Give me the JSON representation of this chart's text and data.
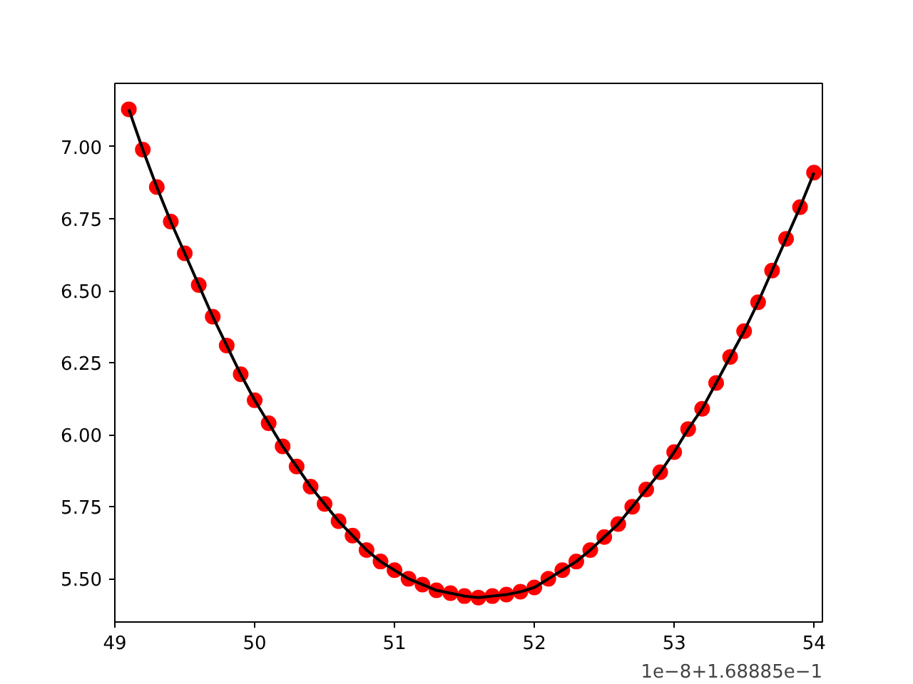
{
  "chart_data": {
    "type": "line",
    "x": [
      49.1,
      49.2,
      49.3,
      49.4,
      49.5,
      49.6,
      49.7,
      49.8,
      49.9,
      50.0,
      50.1,
      50.2,
      50.3,
      50.4,
      50.5,
      50.6,
      50.7,
      50.8,
      50.9,
      51.0,
      51.1,
      51.2,
      51.3,
      51.4,
      51.5,
      51.6,
      51.7,
      51.8,
      51.9,
      52.0,
      52.1,
      52.2,
      52.3,
      52.4,
      52.5,
      52.6,
      52.7,
      52.8,
      52.9,
      53.0,
      53.1,
      53.2,
      53.3,
      53.4,
      53.5,
      53.6,
      53.7,
      53.8,
      53.9,
      54.0
    ],
    "series": [
      {
        "type": "scatter",
        "marker": "circle",
        "color": "#ff0000",
        "values": [
          7.13,
          6.99,
          6.86,
          6.74,
          6.63,
          6.52,
          6.41,
          6.31,
          6.21,
          6.12,
          6.04,
          5.96,
          5.89,
          5.82,
          5.76,
          5.7,
          5.65,
          5.6,
          5.56,
          5.53,
          5.5,
          5.48,
          5.46,
          5.45,
          5.44,
          5.435,
          5.44,
          5.445,
          5.455,
          5.47,
          5.5,
          5.53,
          5.56,
          5.6,
          5.645,
          5.69,
          5.75,
          5.81,
          5.87,
          5.94,
          6.02,
          6.09,
          6.18,
          6.27,
          6.36,
          6.46,
          6.57,
          6.68,
          6.79,
          6.91
        ]
      },
      {
        "line_style": "solid",
        "color": "#000000",
        "values": [
          7.13,
          6.99,
          6.86,
          6.74,
          6.63,
          6.52,
          6.41,
          6.31,
          6.21,
          6.12,
          6.04,
          5.96,
          5.89,
          5.82,
          5.76,
          5.7,
          5.65,
          5.6,
          5.56,
          5.53,
          5.5,
          5.48,
          5.46,
          5.45,
          5.44,
          5.435,
          5.44,
          5.445,
          5.455,
          5.47,
          5.5,
          5.53,
          5.56,
          5.6,
          5.645,
          5.69,
          5.75,
          5.81,
          5.87,
          5.94,
          6.02,
          6.09,
          6.18,
          6.27,
          6.36,
          6.46,
          6.57,
          6.68,
          6.79,
          6.91
        ]
      }
    ],
    "xlim": [
      49,
      54.06
    ],
    "xticks": [
      49,
      50,
      51,
      52,
      53,
      54
    ],
    "ylim": [
      5.35,
      7.22
    ],
    "yticks": [
      {
        "value": 5.5,
        "label": "5.50"
      },
      {
        "value": 5.75,
        "label": "5.75"
      },
      {
        "value": 6.0,
        "label": "6.00"
      },
      {
        "value": 6.25,
        "label": "6.25"
      },
      {
        "value": 6.5,
        "label": "6.50"
      },
      {
        "value": 6.75,
        "label": "6.75"
      },
      {
        "value": 7.0,
        "label": "7.00"
      }
    ],
    "grid": false,
    "annotations": [
      "1e−8+1.68885e−1"
    ]
  }
}
